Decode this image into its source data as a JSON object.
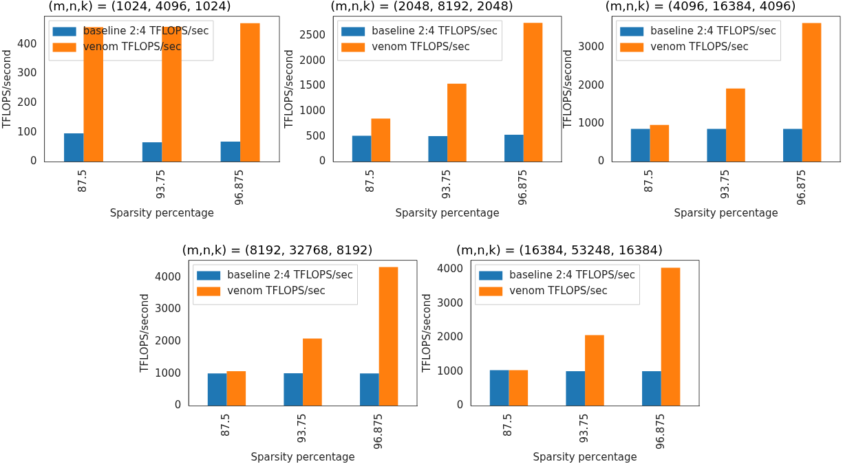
{
  "chart_data": [
    {
      "type": "bar",
      "title": "(m,n,k) = (1024, 4096, 1024)",
      "xlabel": "Sparsity percentage",
      "ylabel": "TFLOPS/second",
      "categories": [
        "87.5",
        "93.75",
        "96.875"
      ],
      "series": [
        {
          "name": "baseline 2:4 TFLOPS/sec",
          "color": "#1f77b4",
          "values": [
            97,
            67,
            69
          ]
        },
        {
          "name": "venom TFLOPS/sec",
          "color": "#ff7f0e",
          "values": [
            459,
            460,
            472
          ]
        }
      ],
      "ylim": [
        0,
        496
      ],
      "yticks": [
        0,
        100,
        200,
        300,
        400
      ],
      "grid": false,
      "legend": "top left"
    },
    {
      "type": "bar",
      "title": "(m,n,k) = (2048, 8192, 2048)",
      "xlabel": "Sparsity percentage",
      "ylabel": "TFLOPS/second",
      "categories": [
        "87.5",
        "93.75",
        "96.875"
      ],
      "series": [
        {
          "name": "baseline 2:4 TFLOPS/sec",
          "color": "#1f77b4",
          "values": [
            520,
            510,
            540
          ]
        },
        {
          "name": "venom TFLOPS/sec",
          "color": "#ff7f0e",
          "values": [
            860,
            1550,
            2760
          ]
        }
      ],
      "ylim": [
        0,
        2890
      ],
      "yticks": [
        0,
        500,
        1000,
        1500,
        2000,
        2500
      ],
      "grid": false,
      "legend": "top left"
    },
    {
      "type": "bar",
      "title": "(m,n,k) = (4096, 16384, 4096)",
      "xlabel": "Sparsity percentage",
      "ylabel": "TFLOPS/second",
      "categories": [
        "87.5",
        "93.75",
        "96.875"
      ],
      "series": [
        {
          "name": "baseline 2:4 TFLOPS/sec",
          "color": "#1f77b4",
          "values": [
            870,
            870,
            870
          ]
        },
        {
          "name": "venom TFLOPS/sec",
          "color": "#ff7f0e",
          "values": [
            970,
            1930,
            3650
          ]
        }
      ],
      "ylim": [
        0,
        3830
      ],
      "yticks": [
        0,
        1000,
        2000,
        3000
      ],
      "grid": false,
      "legend": "top left"
    },
    {
      "type": "bar",
      "title": "(m,n,k) = (8192, 32768, 8192)",
      "xlabel": "Sparsity percentage",
      "ylabel": "TFLOPS/second",
      "categories": [
        "87.5",
        "93.75",
        "96.875"
      ],
      "series": [
        {
          "name": "baseline 2:4 TFLOPS/sec",
          "color": "#1f77b4",
          "values": [
            1010,
            1020,
            1010
          ]
        },
        {
          "name": "venom TFLOPS/sec",
          "color": "#ff7f0e",
          "values": [
            1080,
            2100,
            4330
          ]
        }
      ],
      "ylim": [
        0,
        4540
      ],
      "yticks": [
        0,
        1000,
        2000,
        3000,
        4000
      ],
      "grid": false,
      "legend": "top left"
    },
    {
      "type": "bar",
      "title": "(m,n,k) = (16384, 53248, 16384)",
      "xlabel": "Sparsity percentage",
      "ylabel": "TFLOPS/second",
      "categories": [
        "87.5",
        "93.75",
        "96.875"
      ],
      "series": [
        {
          "name": "baseline 2:4 TFLOPS/sec",
          "color": "#1f77b4",
          "values": [
            1050,
            1020,
            1020
          ]
        },
        {
          "name": "venom TFLOPS/sec",
          "color": "#ff7f0e",
          "values": [
            1050,
            2080,
            4060
          ]
        }
      ],
      "ylim": [
        0,
        4280
      ],
      "yticks": [
        0,
        1000,
        2000,
        3000,
        4000
      ],
      "grid": false,
      "legend": "top left"
    }
  ]
}
